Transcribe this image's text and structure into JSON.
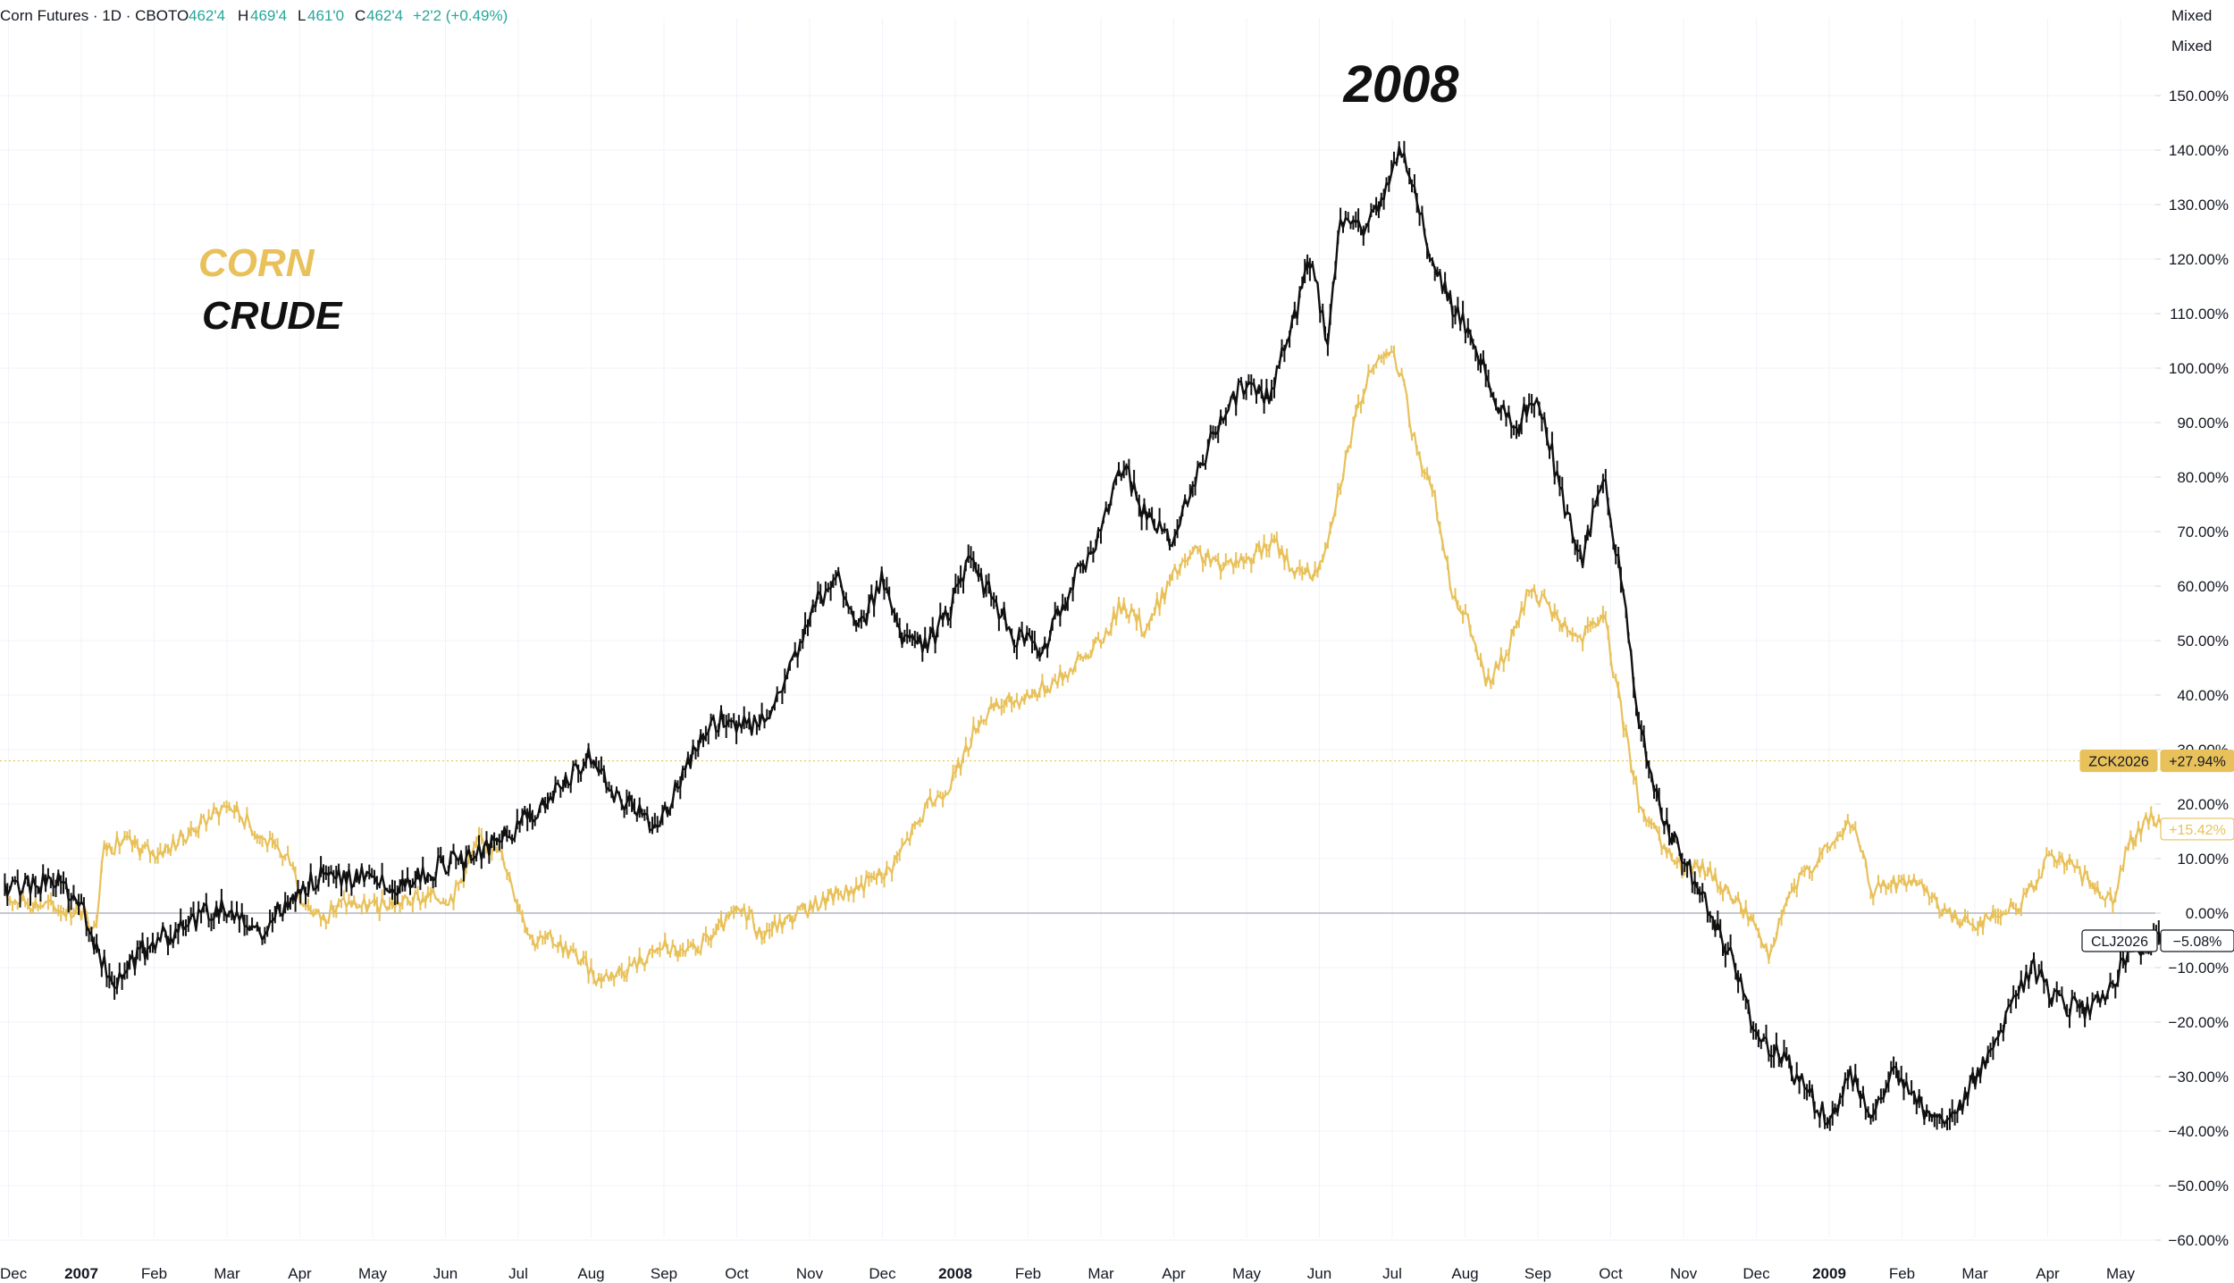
{
  "header": {
    "symbol_info": "Corn Futures · 1D · CBOT",
    "ohlc": {
      "o_label": "O",
      "o_value": "462'4",
      "h_label": "H",
      "h_value": "469'4",
      "l_label": "L",
      "l_value": "461'0",
      "c_label": "C",
      "c_value": "462'4",
      "change": "+2'2 (+0.49%)"
    },
    "mode_labels": [
      "Mixed",
      "Mixed"
    ]
  },
  "annotations": {
    "year_title": "2008",
    "legend_corn": "CORN",
    "legend_crude": "CRUDE"
  },
  "colors": {
    "corn": "#E8C15A",
    "crude": "#111111",
    "ohlc_green": "#26A69A",
    "grid": "#F0F3FA",
    "axis_text": "#131722",
    "zero_line": "#B2B5BE"
  },
  "price_labels": {
    "corn_symbol": "ZCK2026",
    "corn_value": "+27.94%",
    "corn_level": 27.94,
    "corn_last": "+15.42%",
    "corn_last_level": 15.42,
    "crude_symbol": "CLJ2026",
    "crude_value": "−5.08%",
    "crude_level": -5.08
  },
  "chart_data": {
    "type": "line",
    "y_axis_unit": "%",
    "ylim": [
      -60,
      150
    ],
    "y_ticks": [
      "150.00%",
      "140.00%",
      "130.00%",
      "120.00%",
      "110.00%",
      "100.00%",
      "90.00%",
      "80.00%",
      "70.00%",
      "60.00%",
      "50.00%",
      "40.00%",
      "30.00%",
      "20.00%",
      "10.00%",
      "0.00%",
      "−10.00%",
      "−20.00%",
      "−30.00%",
      "−40.00%",
      "−50.00%",
      "−60.00%"
    ],
    "x_ticks": [
      {
        "label": "Dec",
        "t": 0,
        "bold": false
      },
      {
        "label": "2007",
        "t": 1,
        "bold": true
      },
      {
        "label": "Feb",
        "t": 2,
        "bold": false
      },
      {
        "label": "Mar",
        "t": 3,
        "bold": false
      },
      {
        "label": "Apr",
        "t": 4,
        "bold": false
      },
      {
        "label": "May",
        "t": 5,
        "bold": false
      },
      {
        "label": "Jun",
        "t": 6,
        "bold": false
      },
      {
        "label": "Jul",
        "t": 7,
        "bold": false
      },
      {
        "label": "Aug",
        "t": 8,
        "bold": false
      },
      {
        "label": "Sep",
        "t": 9,
        "bold": false
      },
      {
        "label": "Oct",
        "t": 10,
        "bold": false
      },
      {
        "label": "Nov",
        "t": 11,
        "bold": false
      },
      {
        "label": "Dec",
        "t": 12,
        "bold": false
      },
      {
        "label": "2008",
        "t": 13,
        "bold": true
      },
      {
        "label": "Feb",
        "t": 14,
        "bold": false
      },
      {
        "label": "Mar",
        "t": 15,
        "bold": false
      },
      {
        "label": "Apr",
        "t": 16,
        "bold": false
      },
      {
        "label": "May",
        "t": 17,
        "bold": false
      },
      {
        "label": "Jun",
        "t": 18,
        "bold": false
      },
      {
        "label": "Jul",
        "t": 19,
        "bold": false
      },
      {
        "label": "Aug",
        "t": 20,
        "bold": false
      },
      {
        "label": "Sep",
        "t": 21,
        "bold": false
      },
      {
        "label": "Oct",
        "t": 22,
        "bold": false
      },
      {
        "label": "Nov",
        "t": 23,
        "bold": false
      },
      {
        "label": "Dec",
        "t": 24,
        "bold": false
      },
      {
        "label": "2009",
        "t": 25,
        "bold": true
      },
      {
        "label": "Feb",
        "t": 26,
        "bold": false
      },
      {
        "label": "Mar",
        "t": 27,
        "bold": false
      },
      {
        "label": "Apr",
        "t": 28,
        "bold": false
      },
      {
        "label": "May",
        "t": 29,
        "bold": false
      }
    ],
    "x_start": -0.05,
    "x_end": 29.6,
    "series": [
      {
        "name": "CORN",
        "color": "#E8C15A",
        "points": [
          [
            -0.05,
            3
          ],
          [
            0.3,
            2
          ],
          [
            0.7,
            1
          ],
          [
            1.0,
            0
          ],
          [
            1.2,
            -2
          ],
          [
            1.3,
            12
          ],
          [
            1.6,
            13
          ],
          [
            2.0,
            11
          ],
          [
            2.2,
            12
          ],
          [
            2.5,
            15
          ],
          [
            2.8,
            18
          ],
          [
            3.0,
            20
          ],
          [
            3.2,
            18
          ],
          [
            3.4,
            15
          ],
          [
            3.7,
            11
          ],
          [
            3.9,
            10
          ],
          [
            4.0,
            3
          ],
          [
            4.3,
            -1
          ],
          [
            4.6,
            2
          ],
          [
            5.0,
            1
          ],
          [
            5.4,
            2
          ],
          [
            5.8,
            3
          ],
          [
            6.1,
            3
          ],
          [
            6.5,
            14
          ],
          [
            6.8,
            10
          ],
          [
            7.0,
            2
          ],
          [
            7.2,
            -5
          ],
          [
            7.5,
            -5
          ],
          [
            7.8,
            -8
          ],
          [
            8.1,
            -12
          ],
          [
            8.5,
            -10
          ],
          [
            8.8,
            -8
          ],
          [
            9.0,
            -6
          ],
          [
            9.3,
            -8
          ],
          [
            9.6,
            -5
          ],
          [
            10.0,
            0
          ],
          [
            10.2,
            0
          ],
          [
            10.3,
            -4
          ],
          [
            10.6,
            -2
          ],
          [
            11.0,
            1
          ],
          [
            11.3,
            3
          ],
          [
            11.7,
            5
          ],
          [
            12.1,
            8
          ],
          [
            12.6,
            19
          ],
          [
            13.0,
            25
          ],
          [
            13.3,
            35
          ],
          [
            13.6,
            38
          ],
          [
            14.0,
            40
          ],
          [
            14.3,
            42
          ],
          [
            14.6,
            45
          ],
          [
            15.0,
            50
          ],
          [
            15.3,
            57
          ],
          [
            15.6,
            52
          ],
          [
            16.0,
            62
          ],
          [
            16.3,
            66
          ],
          [
            16.6,
            64
          ],
          [
            17.0,
            65
          ],
          [
            17.4,
            68
          ],
          [
            17.7,
            62
          ],
          [
            18.0,
            63
          ],
          [
            18.3,
            80
          ],
          [
            18.6,
            96
          ],
          [
            18.9,
            104
          ],
          [
            19.1,
            100
          ],
          [
            19.3,
            87
          ],
          [
            19.6,
            75
          ],
          [
            19.8,
            60
          ],
          [
            20.0,
            55
          ],
          [
            20.3,
            42
          ],
          [
            20.6,
            48
          ],
          [
            20.9,
            60
          ],
          [
            21.2,
            55
          ],
          [
            21.6,
            50
          ],
          [
            21.9,
            55
          ],
          [
            22.1,
            40
          ],
          [
            22.4,
            20
          ],
          [
            22.7,
            12
          ],
          [
            23.0,
            8
          ],
          [
            23.3,
            8
          ],
          [
            23.6,
            4
          ],
          [
            24.0,
            -2
          ],
          [
            24.2,
            -8
          ],
          [
            24.4,
            2
          ],
          [
            24.7,
            8
          ],
          [
            25.0,
            12
          ],
          [
            25.3,
            17
          ],
          [
            25.6,
            4
          ],
          [
            26.0,
            6
          ],
          [
            26.3,
            4
          ],
          [
            26.6,
            0
          ],
          [
            27.0,
            -2
          ],
          [
            27.3,
            0
          ],
          [
            27.6,
            1
          ],
          [
            28.0,
            10
          ],
          [
            28.3,
            9
          ],
          [
            28.6,
            5
          ],
          [
            28.9,
            3
          ],
          [
            29.1,
            12
          ],
          [
            29.4,
            18
          ],
          [
            29.6,
            15.42
          ]
        ]
      },
      {
        "name": "CRUDE",
        "color": "#111111",
        "points": [
          [
            -0.05,
            4
          ],
          [
            0.3,
            5
          ],
          [
            0.7,
            6
          ],
          [
            1.0,
            1
          ],
          [
            1.2,
            -6
          ],
          [
            1.4,
            -13
          ],
          [
            1.6,
            -10
          ],
          [
            2.0,
            -5
          ],
          [
            2.4,
            -3
          ],
          [
            2.7,
            0
          ],
          [
            3.0,
            1
          ],
          [
            3.2,
            -2
          ],
          [
            3.5,
            -4
          ],
          [
            3.8,
            2
          ],
          [
            4.0,
            4
          ],
          [
            4.3,
            7
          ],
          [
            4.6,
            6
          ],
          [
            5.0,
            8
          ],
          [
            5.2,
            4
          ],
          [
            5.6,
            6
          ],
          [
            6.0,
            9
          ],
          [
            6.3,
            10
          ],
          [
            6.6,
            12
          ],
          [
            7.0,
            16
          ],
          [
            7.3,
            20
          ],
          [
            7.6,
            23
          ],
          [
            8.0,
            29
          ],
          [
            8.3,
            22
          ],
          [
            8.6,
            19
          ],
          [
            8.9,
            16
          ],
          [
            9.2,
            24
          ],
          [
            9.5,
            31
          ],
          [
            9.8,
            36
          ],
          [
            10.2,
            34
          ],
          [
            10.5,
            38
          ],
          [
            10.8,
            48
          ],
          [
            11.1,
            57
          ],
          [
            11.4,
            62
          ],
          [
            11.7,
            52
          ],
          [
            12.0,
            62
          ],
          [
            12.3,
            50
          ],
          [
            12.6,
            49
          ],
          [
            12.9,
            55
          ],
          [
            13.2,
            64
          ],
          [
            13.5,
            58
          ],
          [
            13.8,
            51
          ],
          [
            14.2,
            48
          ],
          [
            14.6,
            60
          ],
          [
            15.0,
            70
          ],
          [
            15.3,
            82
          ],
          [
            15.6,
            73
          ],
          [
            16.0,
            68
          ],
          [
            16.3,
            80
          ],
          [
            16.6,
            90
          ],
          [
            17.0,
            98
          ],
          [
            17.3,
            95
          ],
          [
            17.6,
            106
          ],
          [
            17.9,
            121
          ],
          [
            18.1,
            104
          ],
          [
            18.3,
            128
          ],
          [
            18.6,
            125
          ],
          [
            18.9,
            133
          ],
          [
            19.1,
            140
          ],
          [
            19.3,
            135
          ],
          [
            19.5,
            120
          ],
          [
            19.8,
            112
          ],
          [
            20.1,
            106
          ],
          [
            20.4,
            94
          ],
          [
            20.7,
            89
          ],
          [
            21.0,
            96
          ],
          [
            21.3,
            78
          ],
          [
            21.6,
            64
          ],
          [
            21.9,
            80
          ],
          [
            22.1,
            65
          ],
          [
            22.4,
            35
          ],
          [
            22.7,
            17
          ],
          [
            23.0,
            10
          ],
          [
            23.3,
            2
          ],
          [
            23.7,
            -10
          ],
          [
            24.0,
            -22
          ],
          [
            24.4,
            -27
          ],
          [
            24.7,
            -33
          ],
          [
            25.0,
            -38
          ],
          [
            25.3,
            -30
          ],
          [
            25.6,
            -37
          ],
          [
            25.9,
            -28
          ],
          [
            26.2,
            -35
          ],
          [
            26.5,
            -38
          ],
          [
            26.8,
            -35
          ],
          [
            27.1,
            -28
          ],
          [
            27.4,
            -20
          ],
          [
            27.8,
            -10
          ],
          [
            28.1,
            -16
          ],
          [
            28.5,
            -18
          ],
          [
            28.8,
            -14
          ],
          [
            29.2,
            -7
          ],
          [
            29.6,
            -5.08
          ]
        ]
      }
    ]
  }
}
